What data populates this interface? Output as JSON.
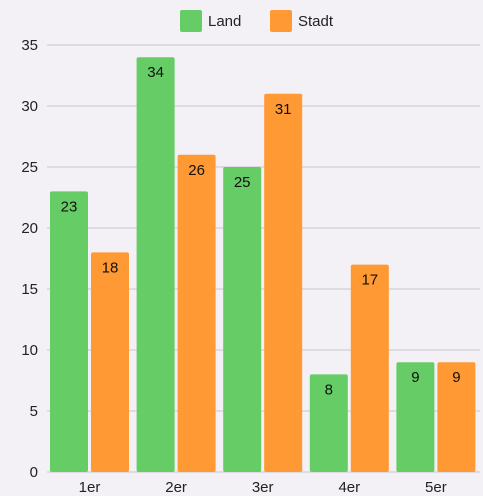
{
  "chart_data": {
    "type": "bar",
    "categories": [
      "1er",
      "2er",
      "3er",
      "4er",
      "5er"
    ],
    "series": [
      {
        "name": "Land",
        "values": [
          23,
          34,
          25,
          8,
          9
        ],
        "color": "#66cc66"
      },
      {
        "name": "Stadt",
        "values": [
          18,
          26,
          31,
          17,
          9
        ],
        "color": "#ff9933"
      }
    ],
    "ylim": [
      0,
      35
    ],
    "yticks": [
      0,
      5,
      10,
      15,
      20,
      25,
      30,
      35
    ],
    "grid": true,
    "legend_position": "top-center",
    "data_labels": true
  }
}
